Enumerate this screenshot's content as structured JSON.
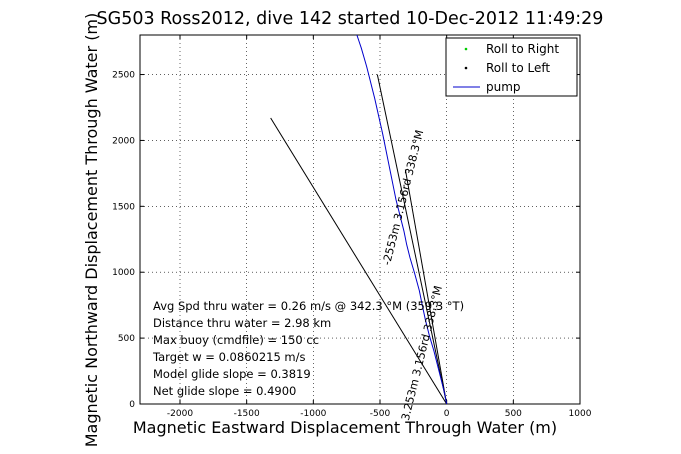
{
  "chart_data": {
    "type": "line",
    "title": "SG503 Ross2012, dive 142 started 10-Dec-2012 11:49:29",
    "xlabel": "Magnetic Eastward Displacement Through Water (m)",
    "ylabel": "Magnetic Northward Displacement Through Water (m)",
    "xlim": [
      -2300,
      1000
    ],
    "ylim": [
      0,
      2800
    ],
    "xticks": [
      -2000,
      -1500,
      -1000,
      -500,
      0,
      500,
      1000
    ],
    "yticks": [
      0,
      500,
      1000,
      1500,
      2000,
      2500
    ],
    "grid": true,
    "legend_position": "top-right",
    "legend": [
      {
        "label": "Roll to Right",
        "color": "#00cc00",
        "marker": "point"
      },
      {
        "label": "Roll to Left",
        "color": "#000000",
        "marker": "point"
      },
      {
        "label": "pump",
        "color": "#0000cc",
        "marker": "line"
      }
    ],
    "series": [
      {
        "name": "pump",
        "color": "#0000cc",
        "x": [
          0,
          -20,
          -45,
          -70,
          -95,
          -130,
          -160,
          -185,
          -205,
          -240,
          -275,
          -300,
          -320,
          -350,
          -380,
          -400,
          -420,
          -440,
          -460,
          -480,
          -500,
          -520,
          -540,
          -560,
          -580,
          -600,
          -620,
          -640,
          -660,
          -680,
          -700,
          -720,
          -730
        ],
        "y": [
          0,
          100,
          200,
          300,
          400,
          520,
          640,
          760,
          860,
          990,
          1110,
          1210,
          1310,
          1430,
          1550,
          1650,
          1750,
          1850,
          1950,
          2050,
          2140,
          2230,
          2320,
          2400,
          2480,
          2560,
          2630,
          2700,
          2760,
          2820,
          2880,
          2940,
          2980
        ]
      }
    ],
    "lines": [
      {
        "color": "#000000",
        "x": [
          0,
          -1320
        ],
        "y": [
          0,
          2170
        ]
      },
      {
        "color": "#000000",
        "x": [
          0,
          -520
        ],
        "y": [
          0,
          2500
        ]
      },
      {
        "color": "#000000",
        "x": [
          0,
          -310
        ],
        "y": [
          0,
          1780
        ]
      }
    ],
    "line_labels": [
      {
        "text": "-2553m 3.156rd 338.3°M",
        "at": [
          -300,
          1560
        ],
        "angle": -76
      },
      {
        "text": "3.253m 3.156rd 338.3°M",
        "at": [
          -160,
          380
        ],
        "angle": -76
      }
    ],
    "annotations": [
      "Avg Spd thru water =  0.26 m/s @ 342.3 °M (359.3 °T)",
      "Distance thru water =  2.98 km",
      "Max buoy (cmdfile) = 150 cc",
      "Target w = 0.0860215 m/s",
      "Model glide slope = 0.3819",
      "Net glide slope = 0.4900"
    ]
  }
}
